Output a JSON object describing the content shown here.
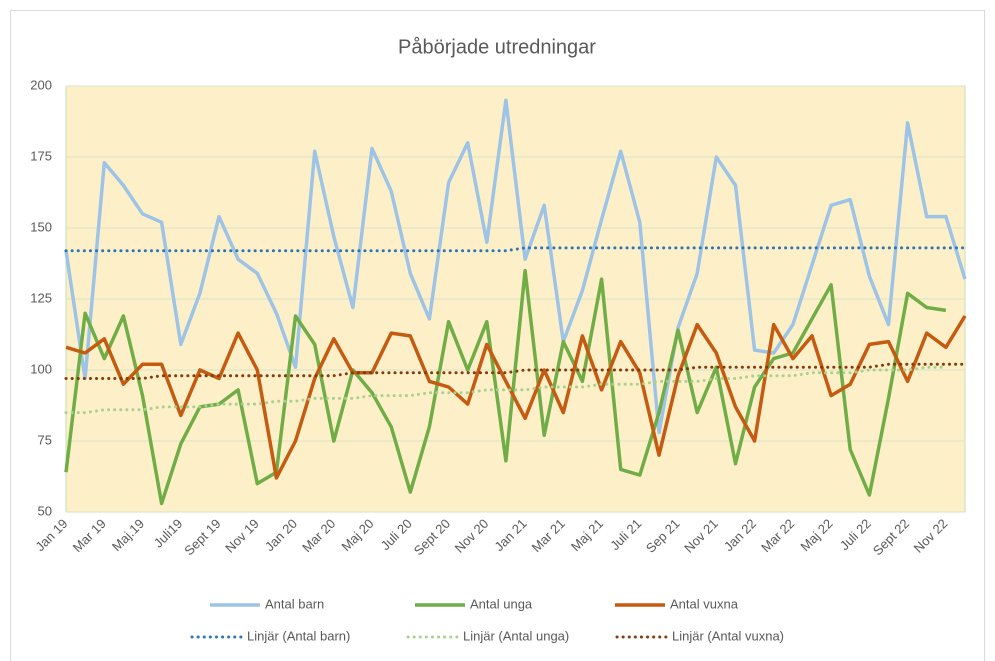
{
  "chart_data": {
    "type": "line",
    "title": "Påbörjade utredningar",
    "categories": [
      "Jan 19",
      null,
      "Mar 19",
      null,
      "Maj.19",
      null,
      "Juli19",
      null,
      "Sept 19",
      null,
      "Nov 19",
      null,
      "Jan 20",
      null,
      "Mar 20",
      null,
      "Maj 20",
      null,
      "Juli 20",
      null,
      "Sept 20",
      null,
      "Nov 20",
      null,
      "Jan 21",
      null,
      "Mar 21",
      null,
      "Maj 21",
      null,
      "Juli 21",
      null,
      "Sep 21",
      null,
      "Nov 21",
      null,
      "Jan 22",
      null,
      "Mar 22",
      null,
      "Maj 22",
      null,
      "Juli 22",
      null,
      "Sept 22",
      null,
      "Nov 22",
      null
    ],
    "series": [
      {
        "name": "Antal barn",
        "color": "#9dc3e6",
        "dotted": false,
        "values": [
          142,
          97,
          173,
          165,
          155,
          152,
          109,
          127,
          154,
          139,
          134,
          120,
          101,
          177,
          147,
          122,
          178,
          163,
          134,
          118,
          166,
          180,
          145,
          195,
          139,
          158,
          110,
          128,
          153,
          177,
          152,
          78,
          115,
          134,
          175,
          165,
          107,
          106,
          116,
          137,
          158,
          160,
          133,
          116,
          187,
          154,
          154,
          132
        ]
      },
      {
        "name": "Antal unga",
        "color": "#70ad47",
        "dotted": false,
        "values": [
          64,
          120,
          104,
          119,
          91,
          53,
          74,
          87,
          88,
          93,
          60,
          64,
          119,
          109,
          75,
          100,
          92,
          80,
          57,
          80,
          117,
          100,
          117,
          68,
          135,
          77,
          110,
          96,
          132,
          65,
          63,
          85,
          114,
          85,
          101,
          67,
          94,
          104,
          106,
          118,
          130,
          72,
          56,
          90,
          127,
          122,
          121,
          null
        ]
      },
      {
        "name": "Antal vuxna",
        "color": "#c55a11",
        "dotted": false,
        "values": [
          108,
          106,
          111,
          95,
          102,
          102,
          84,
          100,
          97,
          113,
          100,
          62,
          75,
          97,
          111,
          99,
          99,
          113,
          112,
          96,
          94,
          88,
          109,
          96,
          83,
          100,
          85,
          112,
          93,
          110,
          99,
          70,
          98,
          116,
          106,
          87,
          75,
          116,
          104,
          112,
          91,
          95,
          109,
          110,
          96,
          113,
          108,
          119
        ]
      },
      {
        "name": "Linjär (Antal barn)",
        "color": "#2e75b6",
        "dotted": true,
        "values": [
          142,
          142,
          142,
          142,
          142,
          142,
          142,
          142,
          142,
          142,
          142,
          142,
          142,
          142,
          142,
          142,
          142,
          142,
          142,
          142,
          142,
          142,
          142,
          142,
          143,
          143,
          143,
          143,
          143,
          143,
          143,
          143,
          143,
          143,
          143,
          143,
          143,
          143,
          143,
          143,
          143,
          143,
          143,
          143,
          143,
          143,
          143,
          143
        ]
      },
      {
        "name": "Linjär (Antal unga)",
        "color": "#a9d18e",
        "dotted": true,
        "values": [
          85,
          85,
          86,
          86,
          86,
          87,
          87,
          87,
          88,
          88,
          88,
          89,
          89,
          90,
          90,
          90,
          91,
          91,
          91,
          92,
          92,
          92,
          93,
          93,
          93,
          94,
          94,
          94,
          95,
          95,
          95,
          96,
          96,
          96,
          97,
          97,
          98,
          98,
          98,
          99,
          99,
          99,
          100,
          100,
          100,
          101,
          101,
          null
        ]
      },
      {
        "name": "Linjär (Antal vuxna)",
        "color": "#843c0c",
        "dotted": true,
        "values": [
          97,
          97,
          97,
          97,
          97,
          98,
          98,
          98,
          98,
          98,
          98,
          98,
          98,
          98,
          98,
          99,
          99,
          99,
          99,
          99,
          99,
          99,
          99,
          99,
          100,
          100,
          100,
          100,
          100,
          100,
          100,
          100,
          100,
          101,
          101,
          101,
          101,
          101,
          101,
          101,
          101,
          101,
          101,
          102,
          102,
          102,
          102,
          102
        ]
      }
    ],
    "ylim": [
      50,
      200
    ],
    "yticks": [
      50,
      75,
      100,
      125,
      150,
      175,
      200
    ],
    "grid": true
  }
}
